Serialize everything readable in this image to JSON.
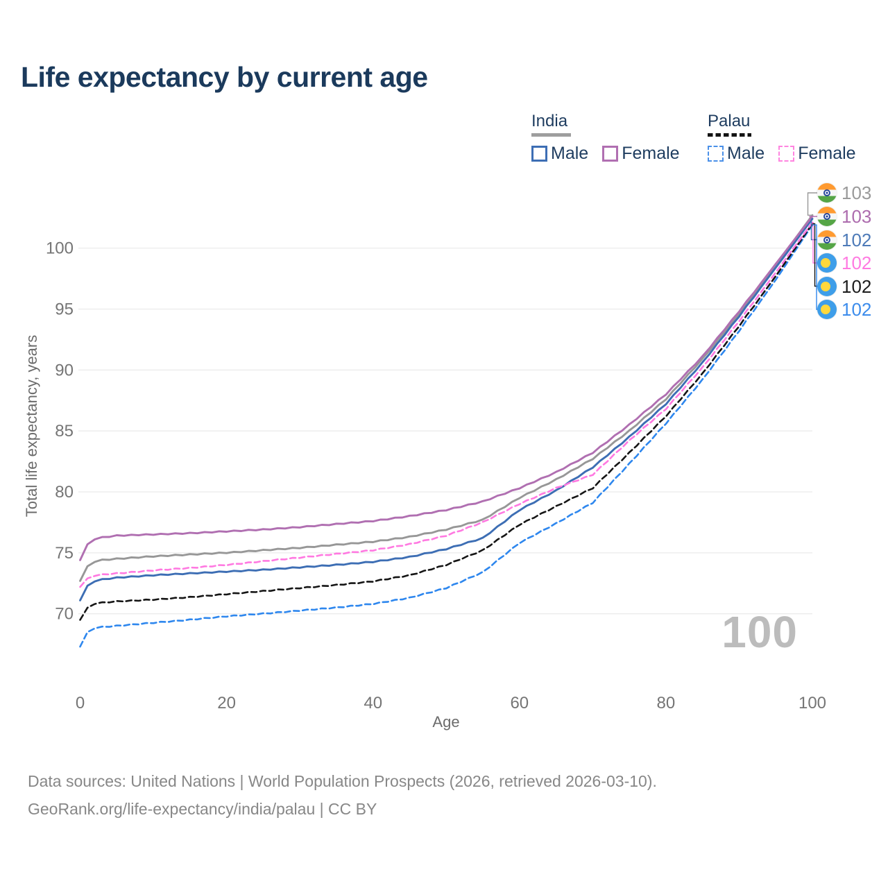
{
  "header": {
    "title": "Life expectancy by current age"
  },
  "legend": {
    "groups": [
      {
        "label": "India",
        "line_style": "solid",
        "underline_color": "#9e9e9e",
        "items": [
          {
            "label": "Male",
            "color": "#3d6eb4",
            "dash": false
          },
          {
            "label": "Female",
            "color": "#b06fb1",
            "dash": false
          }
        ]
      },
      {
        "label": "Palau",
        "line_style": "dashed",
        "underline_color": "#141414",
        "items": [
          {
            "label": "Male",
            "color": "#4a90e8",
            "dash": true
          },
          {
            "label": "Female",
            "color": "#ff85e0",
            "dash": true
          }
        ]
      }
    ]
  },
  "chart_data": {
    "type": "line",
    "title": "Life expectancy by current age",
    "xlabel": "Age",
    "ylabel": "Total life expectancy, years",
    "x_ticks": [
      0,
      20,
      40,
      60,
      80,
      100
    ],
    "y_ticks": [
      70,
      75,
      80,
      85,
      90,
      95,
      100
    ],
    "xlim": [
      0,
      100
    ],
    "ylim": [
      66.5,
      103.5
    ],
    "grid": "horizontal",
    "legend_position": "top-right",
    "watermark": "100",
    "x": [
      0,
      1,
      2,
      3,
      5,
      10,
      15,
      20,
      25,
      30,
      35,
      40,
      45,
      50,
      55,
      60,
      65,
      70,
      75,
      80,
      85,
      90,
      95,
      100
    ],
    "series": [
      {
        "id": "india-total",
        "name": "India — Both sexes",
        "country": "India",
        "sex": "both",
        "color": "#979797",
        "label_color": "#9a9a9a",
        "dash": false,
        "flag": "india",
        "end_label": "103",
        "values": [
          72.7,
          73.9,
          74.25,
          74.4,
          74.5,
          74.7,
          74.85,
          75.0,
          75.2,
          75.4,
          75.65,
          75.9,
          76.3,
          76.9,
          77.7,
          79.5,
          81.0,
          82.7,
          85.0,
          87.6,
          90.9,
          94.6,
          98.6,
          102.7
        ]
      },
      {
        "id": "india-female",
        "name": "India — Female",
        "country": "India",
        "sex": "female",
        "color": "#b06fb1",
        "label_color": "#ad6cae",
        "dash": false,
        "flag": "india",
        "end_label": "103",
        "values": [
          74.4,
          75.7,
          76.1,
          76.25,
          76.4,
          76.5,
          76.6,
          76.75,
          76.9,
          77.1,
          77.35,
          77.6,
          78.0,
          78.5,
          79.2,
          80.3,
          81.6,
          83.2,
          85.5,
          88.0,
          91.1,
          94.8,
          98.7,
          102.6
        ]
      },
      {
        "id": "india-male",
        "name": "India — Male",
        "country": "India",
        "sex": "male",
        "color": "#3d6eb4",
        "label_color": "#4d7ab8",
        "dash": false,
        "flag": "india",
        "end_label": "102",
        "values": [
          71.1,
          72.3,
          72.65,
          72.8,
          72.95,
          73.15,
          73.3,
          73.45,
          73.6,
          73.8,
          74.0,
          74.25,
          74.65,
          75.3,
          76.2,
          78.5,
          80.1,
          82.0,
          84.5,
          87.2,
          90.6,
          94.4,
          98.4,
          102.4
        ]
      },
      {
        "id": "palau-female",
        "name": "Palau — Female",
        "country": "Palau",
        "sex": "female",
        "color": "#ff79e1",
        "label_color": "#ff7ae1",
        "dash": true,
        "flag": "palau",
        "end_label": "102",
        "values": [
          72.2,
          72.9,
          73.1,
          73.2,
          73.3,
          73.55,
          73.75,
          74.0,
          74.3,
          74.6,
          74.9,
          75.2,
          75.7,
          76.4,
          77.5,
          79.0,
          80.3,
          81.4,
          84.2,
          86.8,
          90.2,
          94.0,
          98.0,
          102.1
        ]
      },
      {
        "id": "palau-total",
        "name": "Palau — Both sexes",
        "country": "Palau",
        "sex": "both",
        "color": "#151515",
        "label_color": "#1c1c1c",
        "dash": true,
        "flag": "palau",
        "end_label": "102",
        "values": [
          69.5,
          70.5,
          70.8,
          70.9,
          71.0,
          71.15,
          71.35,
          71.6,
          71.85,
          72.1,
          72.35,
          72.65,
          73.15,
          74.0,
          75.2,
          77.3,
          78.8,
          80.3,
          83.2,
          86.2,
          89.7,
          93.6,
          97.7,
          102.0
        ]
      },
      {
        "id": "palau-male",
        "name": "Palau — Male",
        "country": "Palau",
        "sex": "male",
        "color": "#2e87ee",
        "label_color": "#3c8cec",
        "dash": true,
        "flag": "palau",
        "end_label": "102",
        "values": [
          67.3,
          68.5,
          68.8,
          68.9,
          69.0,
          69.25,
          69.5,
          69.78,
          70.0,
          70.25,
          70.5,
          70.8,
          71.3,
          72.1,
          73.4,
          75.8,
          77.4,
          79.1,
          82.3,
          85.6,
          89.2,
          93.2,
          97.4,
          101.9
        ]
      }
    ]
  },
  "footer": {
    "line1": "Data sources: United Nations | World Population Prospects (2026, retrieved 2026-03-10).",
    "line2": "GeoRank.org/life-expectancy/india/palau | CC BY"
  }
}
